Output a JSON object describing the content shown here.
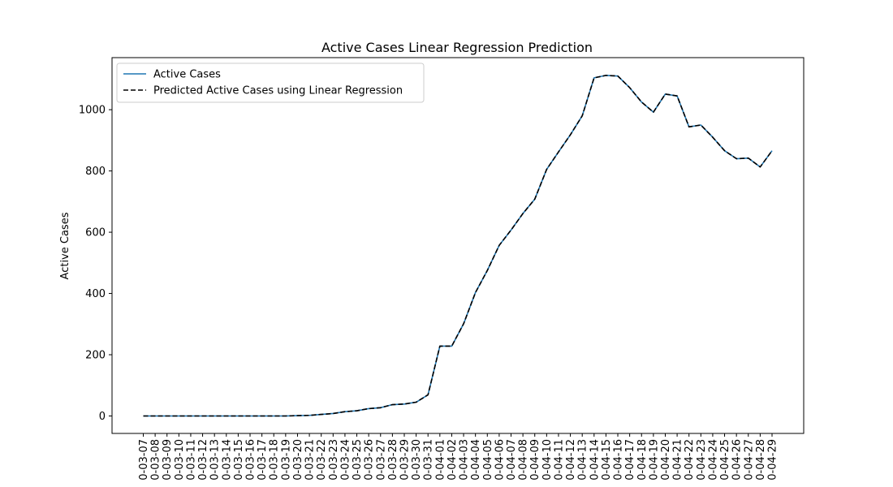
{
  "chart_data": {
    "type": "line",
    "title": "Active Cases Linear Regression Prediction",
    "xlabel": "",
    "ylabel": "Active Cases",
    "categories": [
      "0-03-07",
      "0-03-08",
      "0-03-09",
      "0-03-10",
      "0-03-11",
      "0-03-12",
      "0-03-13",
      "0-03-14",
      "0-03-15",
      "0-03-16",
      "0-03-17",
      "0-03-18",
      "0-03-19",
      "0-03-20",
      "0-03-21",
      "0-03-22",
      "0-03-23",
      "0-03-24",
      "0-03-25",
      "0-03-26",
      "0-03-27",
      "0-03-28",
      "0-03-29",
      "0-03-30",
      "0-03-31",
      "0-04-01",
      "0-04-02",
      "0-04-03",
      "0-04-04",
      "0-04-05",
      "0-04-06",
      "0-04-07",
      "0-04-08",
      "0-04-09",
      "0-04-10",
      "0-04-11",
      "0-04-12",
      "0-04-13",
      "0-04-14",
      "0-04-15",
      "0-04-16",
      "0-04-17",
      "0-04-18",
      "0-04-19",
      "0-04-20",
      "0-04-21",
      "0-04-22",
      "0-04-23",
      "0-04-24",
      "0-04-25",
      "0-04-26",
      "0-04-27",
      "0-04-28",
      "0-04-29"
    ],
    "series": [
      {
        "name": "Active Cases",
        "color": "#1f77b4",
        "style": "solid",
        "values": [
          0,
          0,
          0,
          0,
          0,
          0,
          0,
          0,
          0,
          0,
          0,
          0,
          0,
          1,
          2,
          5,
          8,
          14,
          17,
          24,
          27,
          37,
          39,
          45,
          69,
          228,
          228,
          301,
          403,
          475,
          557,
          607,
          661,
          708,
          805,
          862,
          918,
          980,
          1104,
          1112,
          1110,
          1072,
          1025,
          992,
          1051,
          1045,
          944,
          950,
          910,
          866,
          840,
          842,
          813,
          866
        ]
      },
      {
        "name": "Predicted Active Cases using Linear Regression",
        "color": "#000000",
        "style": "dashed",
        "values": [
          0,
          0,
          0,
          0,
          0,
          0,
          0,
          0,
          0,
          0,
          0,
          0,
          0,
          1,
          2,
          5,
          8,
          14,
          17,
          24,
          27,
          37,
          39,
          45,
          69,
          228,
          228,
          301,
          403,
          475,
          557,
          607,
          661,
          708,
          805,
          862,
          918,
          980,
          1104,
          1112,
          1110,
          1072,
          1025,
          992,
          1051,
          1045,
          944,
          950,
          910,
          866,
          840,
          842,
          813,
          866
        ]
      }
    ],
    "ylim": [
      -57,
      1170
    ],
    "yticks": [
      0,
      200,
      400,
      600,
      800,
      1000
    ],
    "grid": false,
    "legend_position": "top-left"
  }
}
